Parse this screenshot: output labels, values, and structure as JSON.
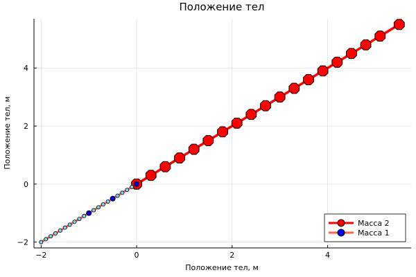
{
  "chart_data": {
    "type": "line",
    "title": "Положение тел",
    "xlabel": "Положение тел, м",
    "ylabel": "Положение тел, м",
    "xlim": [
      -2.15,
      5.75
    ],
    "ylim": [
      -2.2,
      5.7
    ],
    "xticks": [
      -2,
      0,
      2,
      4
    ],
    "yticks": [
      -2,
      0,
      2,
      4
    ],
    "grid": true,
    "legend_position": "bottom-right",
    "series": [
      {
        "name": "Масса 2",
        "line_color": "#ff0000",
        "marker_color": "#ff0000",
        "marker_stroke": "#000000",
        "marker_size": "large",
        "x": [
          0,
          0.3,
          0.6,
          0.9,
          1.2,
          1.5,
          1.8,
          2.1,
          2.4,
          2.7,
          3.0,
          3.3,
          3.6,
          3.9,
          4.2,
          4.5,
          4.8,
          5.1,
          5.5
        ],
        "y": [
          0,
          0.3,
          0.6,
          0.9,
          1.2,
          1.5,
          1.8,
          2.1,
          2.4,
          2.7,
          3.0,
          3.3,
          3.6,
          3.9,
          4.2,
          4.5,
          4.8,
          5.1,
          5.5
        ]
      },
      {
        "name": "Масса 1",
        "line_color": "#ff6347",
        "marker_color": "#87ceeb",
        "marker_stroke": "#000000",
        "marker_size": "small",
        "x": [
          -2,
          -1.9,
          -1.8,
          -1.7,
          -1.6,
          -1.5,
          -1.4,
          -1.3,
          -1.2,
          -1.1,
          -1.0,
          -0.9,
          -0.8,
          -0.7,
          -0.6,
          -0.5,
          -0.4,
          -0.3,
          -0.2,
          -0.1,
          0
        ],
        "y": [
          -2,
          -1.9,
          -1.8,
          -1.7,
          -1.6,
          -1.5,
          -1.4,
          -1.3,
          -1.2,
          -1.1,
          -1.0,
          -0.9,
          -0.8,
          -0.7,
          -0.6,
          -0.5,
          -0.4,
          -0.3,
          -0.2,
          -0.1,
          0
        ]
      }
    ],
    "highlight_points": {
      "color": "#0000cd",
      "x": [
        -1.0,
        -0.5,
        0
      ],
      "y": [
        -1.0,
        -0.5,
        0
      ]
    },
    "legend_markers": {
      "Масса 2": "#ff0000",
      "Масса 1": "#0000ff"
    }
  }
}
